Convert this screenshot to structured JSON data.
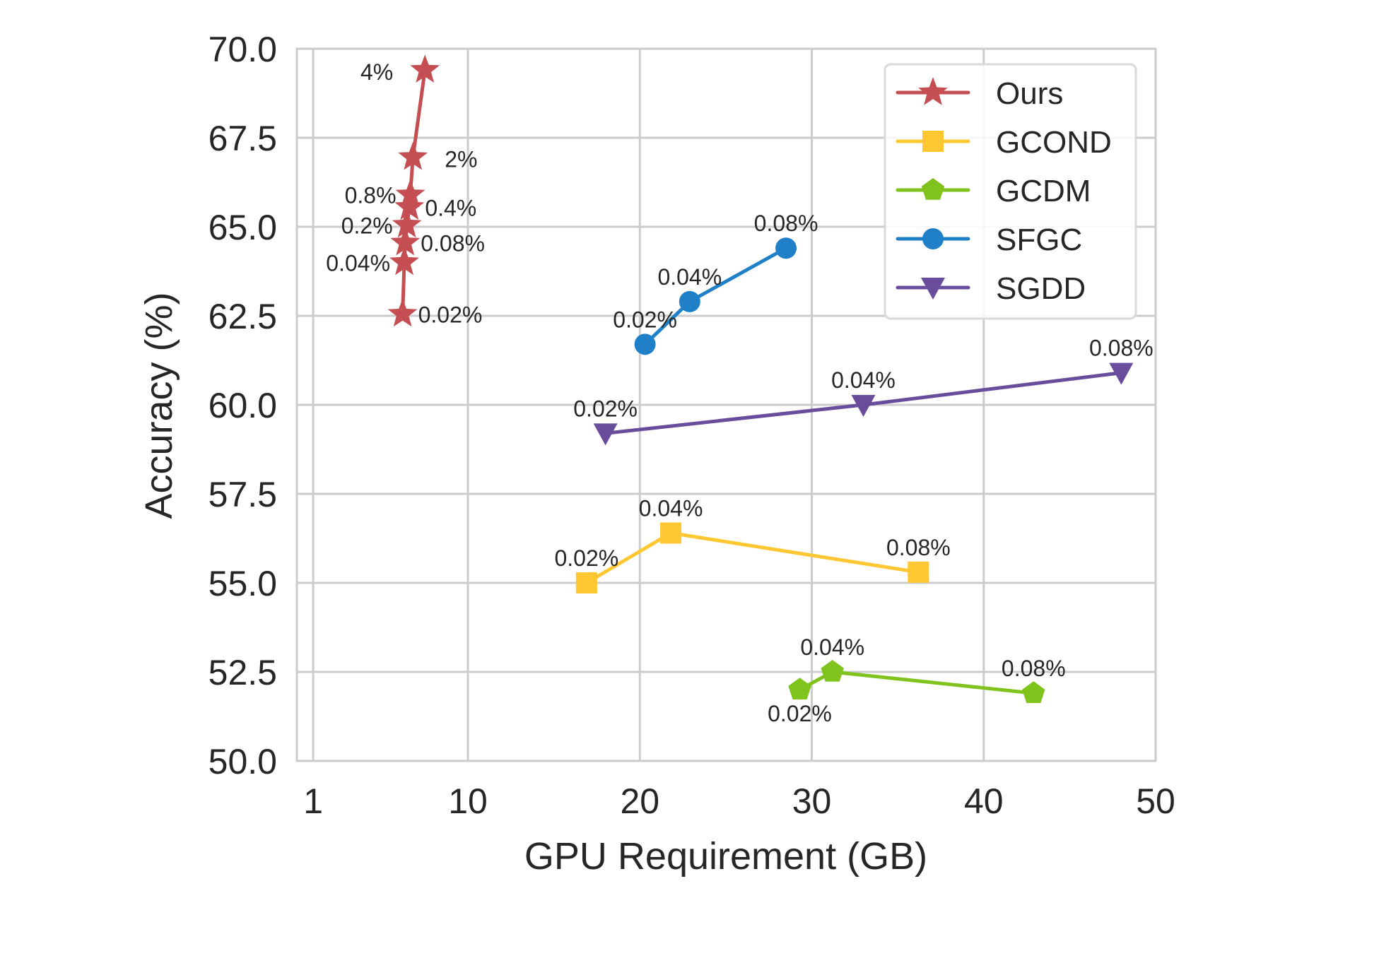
{
  "chart_data": {
    "type": "line",
    "title": "",
    "xlabel": "GPU Requirement (GB)",
    "ylabel": "Accuracy (%)",
    "xlim": [
      0.05,
      50
    ],
    "ylim": [
      50,
      70
    ],
    "xticks": [
      1,
      10,
      20,
      30,
      40,
      50
    ],
    "xtick_labels": [
      "1",
      "10",
      "20",
      "30",
      "40",
      "50"
    ],
    "yticks": [
      50,
      52.5,
      55,
      57.5,
      60,
      62.5,
      65,
      67.5,
      70
    ],
    "ytick_labels": [
      "50.0",
      "52.5",
      "55.0",
      "57.5",
      "60.0",
      "62.5",
      "65.0",
      "67.5",
      "70.0"
    ],
    "grid": true,
    "legend_position": "top-right",
    "series": [
      {
        "name": "Ours",
        "color": "#c44e52",
        "marker": "star",
        "points": [
          {
            "x": 6.2,
            "y": 62.55,
            "label": "0.02%",
            "label_pos": "right"
          },
          {
            "x": 6.3,
            "y": 64.0,
            "label": "0.04%",
            "label_pos": "left"
          },
          {
            "x": 6.35,
            "y": 64.55,
            "label": "0.08%",
            "label_pos": "right"
          },
          {
            "x": 6.45,
            "y": 65.05,
            "label": "0.2%",
            "label_pos": "left"
          },
          {
            "x": 6.6,
            "y": 65.55,
            "label": "0.4%",
            "label_pos": "right"
          },
          {
            "x": 6.65,
            "y": 65.9,
            "label": "0.8%",
            "label_pos": "left"
          },
          {
            "x": 6.8,
            "y": 66.95,
            "label": "2%",
            "label_pos": "right"
          },
          {
            "x": 7.5,
            "y": 69.4,
            "label": "4%",
            "label_pos": "left"
          }
        ]
      },
      {
        "name": "GCOND",
        "color": "#ffc832",
        "marker": "square",
        "points": [
          {
            "x": 16.9,
            "y": 55.0,
            "label": "0.02%",
            "label_pos": "above"
          },
          {
            "x": 21.8,
            "y": 56.4,
            "label": "0.04%",
            "label_pos": "above"
          },
          {
            "x": 36.2,
            "y": 55.3,
            "label": "0.08%",
            "label_pos": "above"
          }
        ]
      },
      {
        "name": "GCDM",
        "color": "#7fc31c",
        "marker": "pentagon",
        "points": [
          {
            "x": 29.3,
            "y": 52.0,
            "label": "0.02%",
            "label_pos": "below"
          },
          {
            "x": 31.2,
            "y": 52.5,
            "label": "0.04%",
            "label_pos": "above"
          },
          {
            "x": 42.9,
            "y": 51.9,
            "label": "0.08%",
            "label_pos": "above"
          }
        ]
      },
      {
        "name": "SFGC",
        "color": "#1f80c8",
        "marker": "circle",
        "points": [
          {
            "x": 20.3,
            "y": 61.7,
            "label": "0.02%",
            "label_pos": "above"
          },
          {
            "x": 22.9,
            "y": 62.9,
            "label": "0.04%",
            "label_pos": "above"
          },
          {
            "x": 28.5,
            "y": 64.4,
            "label": "0.08%",
            "label_pos": "above"
          }
        ]
      },
      {
        "name": "SGDD",
        "color": "#6a4c9c",
        "marker": "triangle-down",
        "points": [
          {
            "x": 18.0,
            "y": 59.2,
            "label": "0.02%",
            "label_pos": "above"
          },
          {
            "x": 33.0,
            "y": 60.0,
            "label": "0.04%",
            "label_pos": "above"
          },
          {
            "x": 48.0,
            "y": 60.9,
            "label": "0.08%",
            "label_pos": "above"
          }
        ]
      }
    ]
  }
}
